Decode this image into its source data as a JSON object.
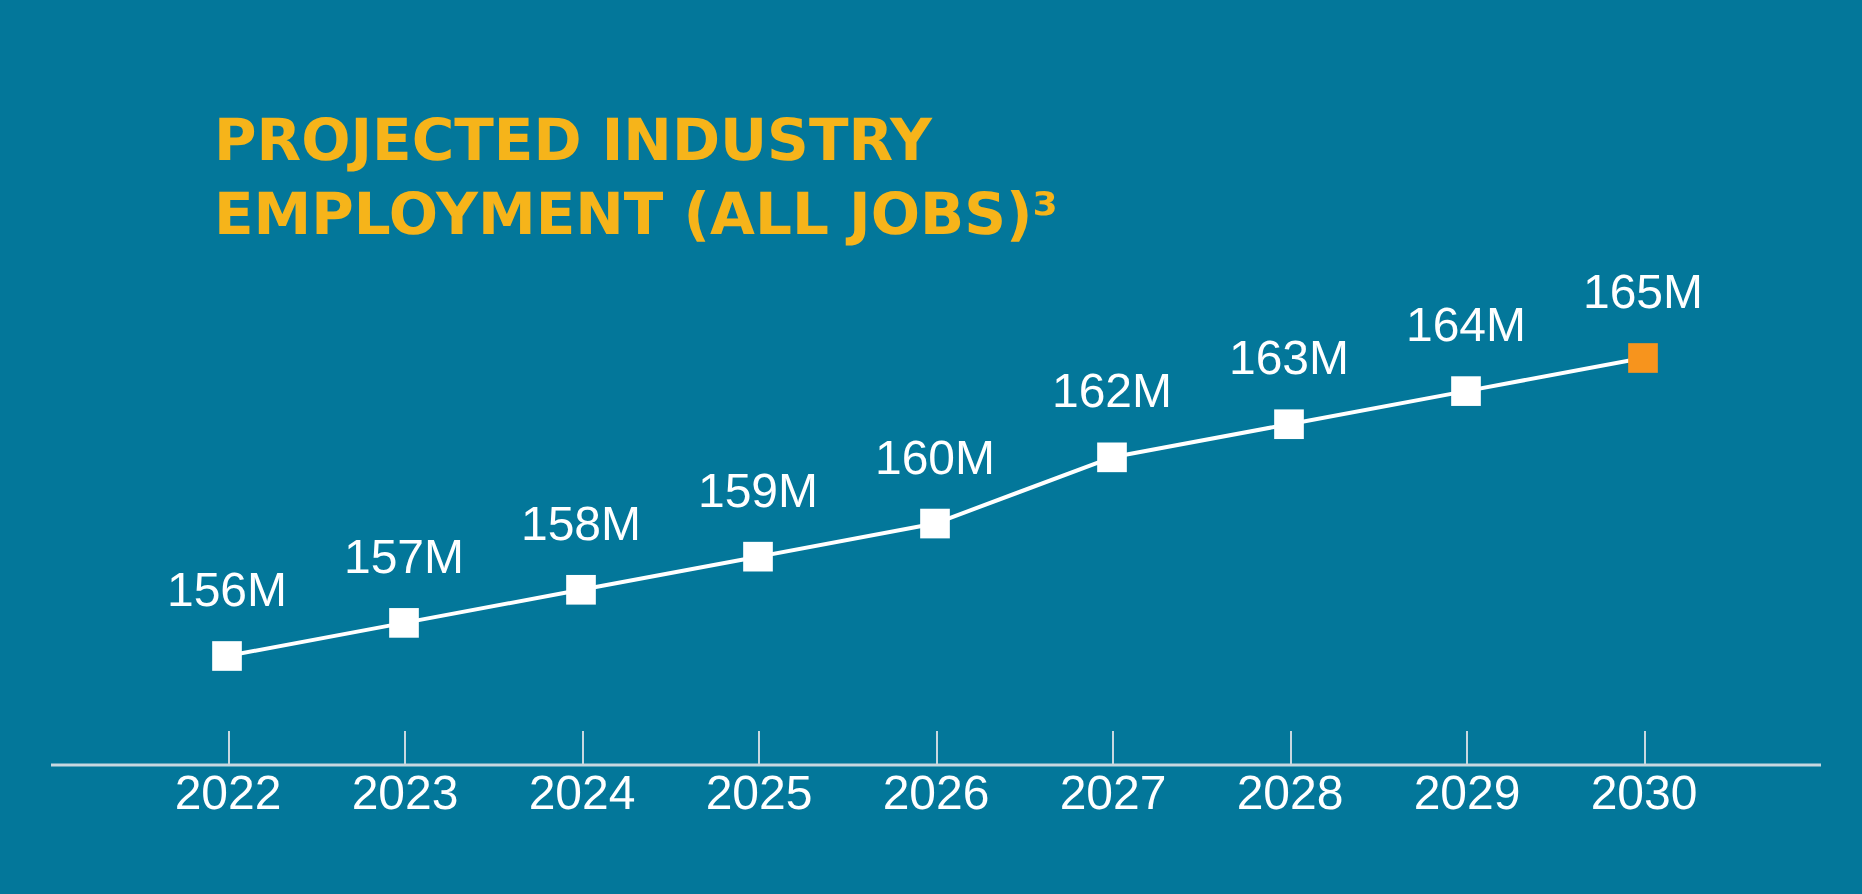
{
  "chart_data": {
    "type": "line",
    "title": "PROJECTED INDUSTRY EMPLOYMENT (ALL JOBS)³",
    "categories": [
      "2022",
      "2023",
      "2024",
      "2025",
      "2026",
      "2027",
      "2028",
      "2029",
      "2030"
    ],
    "series": [
      {
        "color": "#ffffff",
        "colors": [
          "#ffffff",
          "#ffffff",
          "#ffffff",
          "#ffffff",
          "#ffffff",
          "#ffffff",
          "#ffffff",
          "#ffffff",
          "#f7941d"
        ],
        "values": [
          156,
          157,
          158,
          159,
          160,
          162,
          163,
          164,
          165
        ],
        "value_labels": [
          "156M",
          "157M",
          "158M",
          "159M",
          "160M",
          "162M",
          "163M",
          "164M",
          "165M"
        ]
      }
    ],
    "marker": "square",
    "line_style": "solid",
    "grid": false,
    "legend": false
  }
}
